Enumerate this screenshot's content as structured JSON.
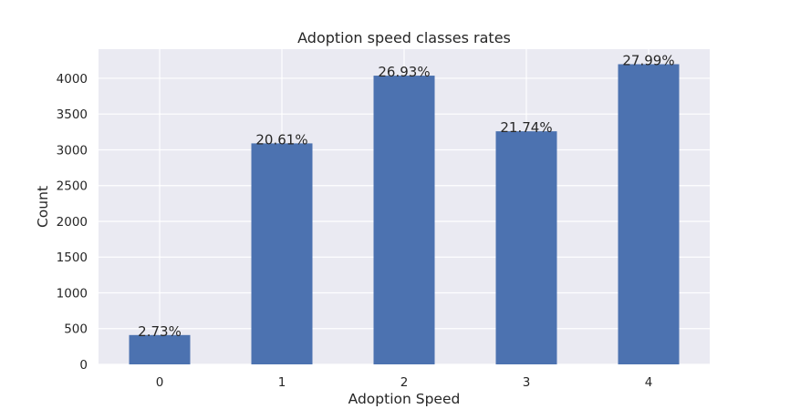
{
  "chart_data": {
    "type": "bar",
    "title": "Adoption speed classes rates",
    "xlabel": "Adoption Speed",
    "ylabel": "Count",
    "categories": [
      "0",
      "1",
      "2",
      "3",
      "4"
    ],
    "values": [
      410,
      3090,
      4037,
      3259,
      4197
    ],
    "data_labels": [
      "2.73%",
      "20.61%",
      "26.93%",
      "21.74%",
      "27.99%"
    ],
    "yticks": [
      0,
      500,
      1000,
      1500,
      2000,
      2500,
      3000,
      3500,
      4000
    ],
    "ytick_labels": [
      "0",
      "500",
      "1000",
      "1500",
      "2000",
      "2500",
      "3000",
      "3500",
      "4000"
    ],
    "ylim": [
      0,
      4407
    ],
    "grid": true,
    "colors": {
      "bar": "#4c72b0",
      "plot_background": "#eaeaf2",
      "grid": "#ffffff",
      "text": "#262626"
    }
  }
}
